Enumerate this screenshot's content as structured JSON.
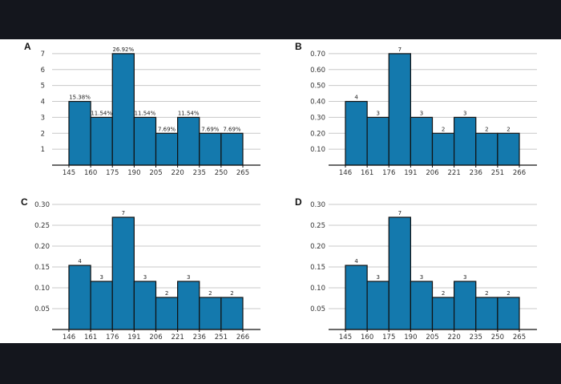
{
  "colors": {
    "bar": "#1479ad",
    "bar_stroke": "#111111",
    "grid": "#c8c8c8",
    "axis": "#111111",
    "background": "#ffffff",
    "frame": "#14161d"
  },
  "chart_data": [
    {
      "panel": "A",
      "type": "bar",
      "bin_edges": [
        145,
        160,
        175,
        190,
        205,
        220,
        235,
        250,
        265
      ],
      "x_tick_labels": [
        "145",
        "160",
        "175",
        "190",
        "205",
        "220",
        "235",
        "250",
        "265"
      ],
      "values": [
        4,
        3,
        7,
        3,
        2,
        3,
        2,
        2
      ],
      "bar_labels": [
        "15.38%",
        "11.54%",
        "26.92%",
        "11.54%",
        "7.69%",
        "11.54%",
        "7.69%",
        "7.69%"
      ],
      "ylim": [
        0,
        7.5
      ],
      "y_ticks": [
        1,
        2,
        3,
        4,
        5,
        6,
        7
      ],
      "y_tick_labels": [
        "1",
        "2",
        "3",
        "4",
        "5",
        "6",
        "7"
      ],
      "grid": true
    },
    {
      "panel": "B",
      "type": "bar",
      "bin_edges": [
        146,
        161,
        176,
        191,
        206,
        221,
        236,
        251,
        266
      ],
      "x_tick_labels": [
        "146",
        "161",
        "176",
        "191",
        "206",
        "221",
        "236",
        "251",
        "266"
      ],
      "values": [
        0.4,
        0.3,
        0.7,
        0.3,
        0.2,
        0.3,
        0.2,
        0.2
      ],
      "bar_labels": [
        "4",
        "3",
        "7",
        "3",
        "2",
        "3",
        "2",
        "2"
      ],
      "ylim": [
        0,
        0.75
      ],
      "y_ticks": [
        0.1,
        0.2,
        0.3,
        0.4,
        0.5,
        0.6,
        0.7
      ],
      "y_tick_labels": [
        "0.10",
        "0.20",
        "0.30",
        "0.40",
        "0.50",
        "0.60",
        "0.70"
      ],
      "grid": true
    },
    {
      "panel": "C",
      "type": "bar",
      "bin_edges": [
        146,
        161,
        176,
        191,
        206,
        221,
        236,
        251,
        266
      ],
      "x_tick_labels": [
        "146",
        "161",
        "176",
        "191",
        "206",
        "221",
        "236",
        "251",
        "266"
      ],
      "values": [
        0.1538,
        0.1154,
        0.2692,
        0.1154,
        0.0769,
        0.1154,
        0.0769,
        0.0769
      ],
      "bar_labels": [
        "4",
        "3",
        "7",
        "3",
        "2",
        "3",
        "2",
        "2"
      ],
      "ylim": [
        0,
        0.3
      ],
      "y_ticks": [
        0.05,
        0.1,
        0.15,
        0.2,
        0.25,
        0.3
      ],
      "y_tick_labels": [
        "0.05",
        "0.10",
        "0.15",
        "0.20",
        "0.25",
        "0.30"
      ],
      "grid": true
    },
    {
      "panel": "D",
      "type": "bar",
      "bin_edges": [
        145,
        160,
        175,
        190,
        205,
        220,
        235,
        250,
        265
      ],
      "x_tick_labels": [
        "145",
        "160",
        "175",
        "190",
        "205",
        "220",
        "235",
        "250",
        "265"
      ],
      "values": [
        0.1538,
        0.1154,
        0.2692,
        0.1154,
        0.0769,
        0.1154,
        0.0769,
        0.0769
      ],
      "bar_labels": [
        "4",
        "3",
        "7",
        "3",
        "2",
        "3",
        "2",
        "2"
      ],
      "ylim": [
        0,
        0.3
      ],
      "y_ticks": [
        0.05,
        0.1,
        0.15,
        0.2,
        0.25,
        0.3
      ],
      "y_tick_labels": [
        "0.05",
        "0.10",
        "0.15",
        "0.20",
        "0.25",
        "0.30"
      ],
      "grid": true
    }
  ]
}
